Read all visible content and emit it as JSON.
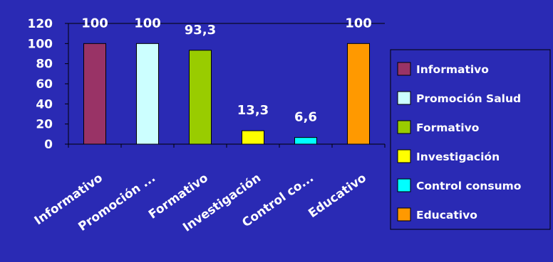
{
  "chart_data": {
    "type": "bar",
    "categories": [
      "Informativo",
      "Promoción ...",
      "Formativo",
      "Investigación",
      "Control co...",
      "Educativo"
    ],
    "values": [
      100,
      100,
      93.3,
      13.3,
      6.6,
      100
    ],
    "data_labels": [
      "100",
      "100",
      "93,3",
      "13,3",
      "6,6",
      "100"
    ],
    "ylim": [
      0,
      120
    ],
    "yticks": [
      0,
      20,
      40,
      60,
      80,
      100,
      120
    ],
    "grid": false,
    "legend": {
      "placement": "right",
      "entries": [
        "Informativo",
        "Promoción Salud",
        "Formativo",
        "Investigación",
        "Control consumo",
        "Educativo"
      ]
    },
    "colors": [
      "#993366",
      "#ccffff",
      "#99cc00",
      "#ffff00",
      "#00ffff",
      "#ff9900"
    ],
    "text_color_axis": "#ffffff",
    "text_color_labels": "#ffffff",
    "text_color_data_labels": "#ffffff",
    "background": "#2a2ab4"
  }
}
